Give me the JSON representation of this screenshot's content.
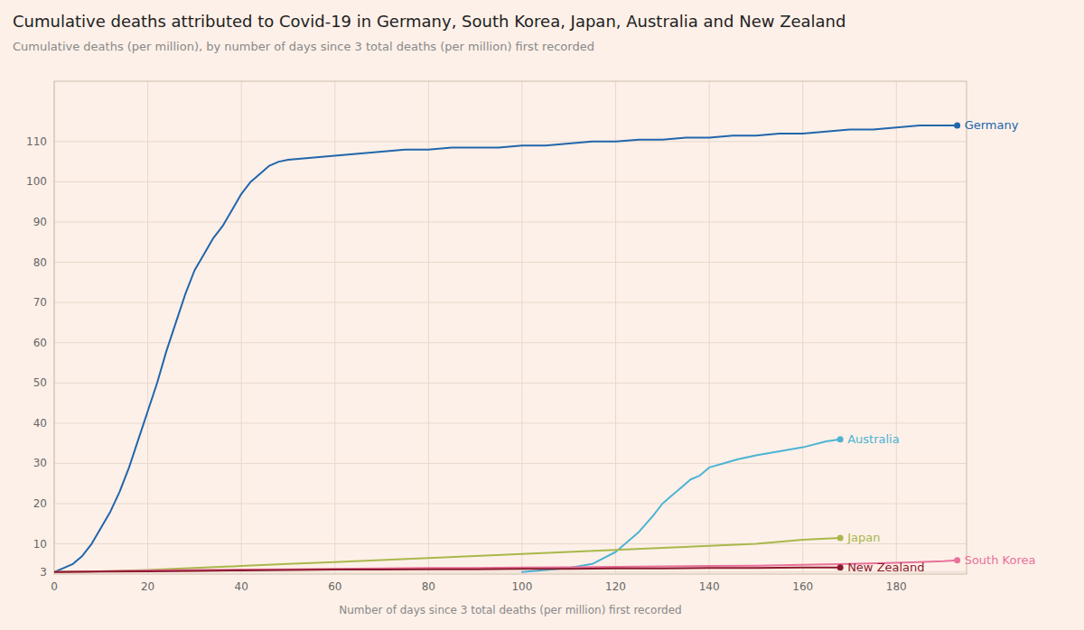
{
  "chart_data": {
    "type": "line",
    "title": "Cumulative deaths attributed to Covid-19 in Germany, South Korea, Japan, Australia and New Zealand",
    "subtitle": "Cumulative deaths (per million), by number of days since 3 total deaths (per million) first recorded",
    "xlabel": "Number of days since 3 total deaths (per million) first recorded",
    "xlim": [
      0,
      195
    ],
    "xticks": [
      0,
      20,
      40,
      60,
      80,
      100,
      120,
      140,
      160,
      180
    ],
    "ylim": [
      2.5,
      125
    ],
    "yticks": [
      3,
      10,
      20,
      30,
      40,
      50,
      60,
      70,
      80,
      90,
      100,
      110
    ],
    "grid": true,
    "series": [
      {
        "name": "Germany",
        "color": "#2166ac",
        "x": [
          0,
          2,
          4,
          6,
          8,
          10,
          12,
          14,
          16,
          18,
          20,
          22,
          24,
          26,
          28,
          30,
          32,
          34,
          36,
          38,
          40,
          42,
          44,
          46,
          48,
          50,
          55,
          60,
          65,
          70,
          75,
          80,
          85,
          90,
          95,
          100,
          105,
          110,
          115,
          120,
          125,
          130,
          135,
          140,
          145,
          150,
          155,
          160,
          165,
          170,
          175,
          180,
          185,
          190,
          193
        ],
        "values": [
          3,
          4,
          5,
          7,
          10,
          14,
          18,
          23,
          29,
          36,
          43,
          50,
          58,
          65,
          72,
          78,
          82,
          86,
          89,
          93,
          97,
          100,
          102,
          104,
          105,
          105.5,
          106,
          106.5,
          107,
          107.5,
          108,
          108,
          108.5,
          108.5,
          108.5,
          109,
          109,
          109.5,
          110,
          110,
          110.5,
          110.5,
          111,
          111,
          111.5,
          111.5,
          112,
          112,
          112.5,
          113,
          113,
          113.5,
          114,
          114,
          114
        ]
      },
      {
        "name": "Australia",
        "color": "#4db3d4",
        "x": [
          100,
          105,
          110,
          115,
          120,
          125,
          128,
          130,
          132,
          134,
          136,
          138,
          140,
          143,
          146,
          150,
          155,
          160,
          165,
          168
        ],
        "values": [
          3,
          3.5,
          4,
          5,
          8,
          13,
          17,
          20,
          22,
          24,
          26,
          27,
          29,
          30,
          31,
          32,
          33,
          34,
          35.5,
          36
        ]
      },
      {
        "name": "Japan",
        "color": "#a8b84b",
        "x": [
          0,
          10,
          20,
          30,
          40,
          50,
          60,
          70,
          80,
          90,
          100,
          110,
          120,
          130,
          140,
          150,
          160,
          168
        ],
        "values": [
          3,
          3.2,
          3.5,
          4,
          4.5,
          5,
          5.5,
          6,
          6.5,
          7,
          7.5,
          8,
          8.5,
          9,
          9.5,
          10,
          11,
          11.5
        ]
      },
      {
        "name": "South Korea",
        "color": "#e8729a",
        "x": [
          0,
          10,
          20,
          30,
          40,
          50,
          60,
          70,
          80,
          90,
          100,
          110,
          120,
          130,
          140,
          150,
          160,
          170,
          180,
          190,
          193
        ],
        "values": [
          3,
          3.2,
          3.4,
          3.5,
          3.6,
          3.7,
          3.8,
          3.9,
          4,
          4,
          4.1,
          4.2,
          4.3,
          4.4,
          4.5,
          4.6,
          4.8,
          5.0,
          5.3,
          5.7,
          5.9
        ]
      },
      {
        "name": "New Zealand",
        "color": "#8b1a2e",
        "x": [
          0,
          10,
          20,
          30,
          40,
          50,
          60,
          70,
          80,
          90,
          100,
          110,
          120,
          130,
          140,
          150,
          160,
          168
        ],
        "values": [
          3,
          3.1,
          3.2,
          3.3,
          3.4,
          3.5,
          3.6,
          3.6,
          3.7,
          3.7,
          3.8,
          3.8,
          3.9,
          3.9,
          4.0,
          4.0,
          4.1,
          4.1
        ]
      }
    ]
  }
}
